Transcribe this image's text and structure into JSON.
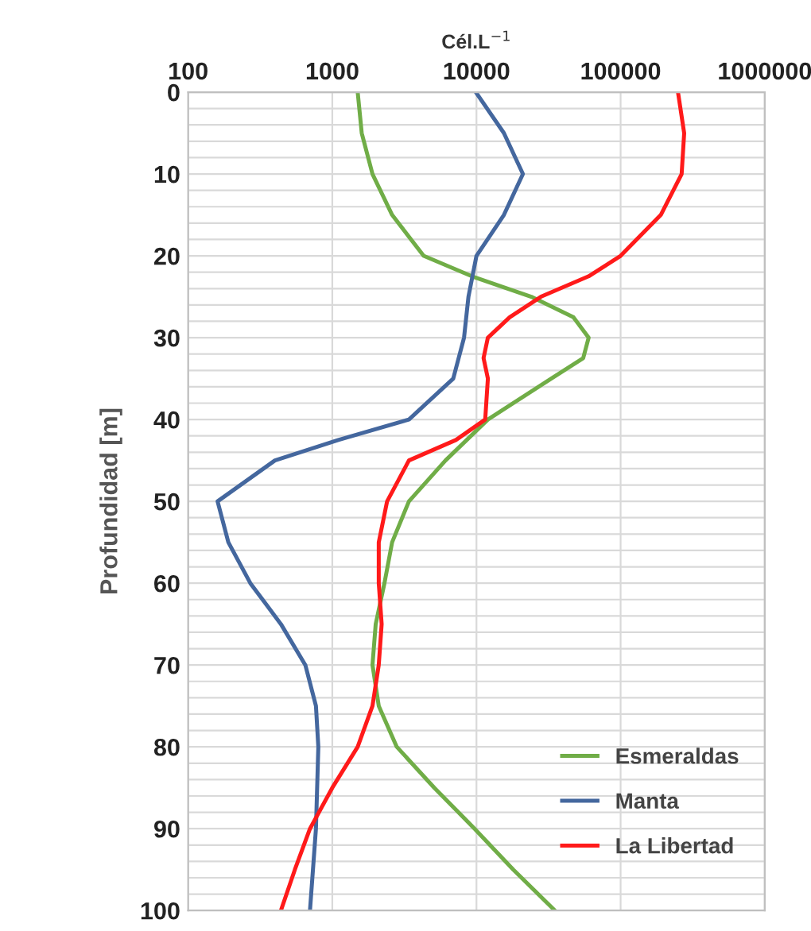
{
  "chart_data": {
    "type": "line",
    "xlabel": "Cél.L$^{−1}$",
    "ylabel": "Profundidad [m]",
    "log": "x",
    "xlim": [
      100,
      1000000
    ],
    "xticks": [
      100,
      1000,
      10000,
      100000,
      1000000
    ],
    "ylim": [
      100,
      0
    ],
    "yticks": [
      0,
      {
        "value": 2,
        "label": null
      },
      {
        "value": 4,
        "label": null
      },
      {
        "value": 6,
        "label": null
      },
      {
        "value": 8,
        "label": null
      },
      10,
      {
        "value": 12,
        "label": null
      },
      {
        "value": 14,
        "label": null
      },
      {
        "value": 16,
        "label": null
      },
      {
        "value": 18,
        "label": null
      },
      20,
      {
        "value": 22,
        "label": null
      },
      {
        "value": 24,
        "label": null
      },
      {
        "value": 26,
        "label": null
      },
      {
        "value": 28,
        "label": null
      },
      30,
      {
        "value": 32,
        "label": null
      },
      {
        "value": 34,
        "label": null
      },
      {
        "value": 36,
        "label": null
      },
      {
        "value": 38,
        "label": null
      },
      40,
      {
        "value": 42,
        "label": null
      },
      {
        "value": 44,
        "label": null
      },
      {
        "value": 46,
        "label": null
      },
      {
        "value": 48,
        "label": null
      },
      50,
      {
        "value": 52,
        "label": null
      },
      {
        "value": 54,
        "label": null
      },
      {
        "value": 56,
        "label": null
      },
      {
        "value": 58,
        "label": null
      },
      60,
      {
        "value": 62,
        "label": null
      },
      {
        "value": 64,
        "label": null
      },
      {
        "value": 66,
        "label": null
      },
      {
        "value": 68,
        "label": null
      },
      70,
      {
        "value": 72,
        "label": null
      },
      {
        "value": 74,
        "label": null
      },
      {
        "value": 76,
        "label": null
      },
      {
        "value": 78,
        "label": null
      },
      80,
      {
        "value": 82,
        "label": null
      },
      {
        "value": 84,
        "label": null
      },
      {
        "value": 86,
        "label": null
      },
      {
        "value": 88,
        "label": null
      },
      90,
      {
        "value": 92,
        "label": null
      },
      {
        "value": 94,
        "label": null
      },
      {
        "value": 96,
        "label": null
      },
      {
        "value": 98,
        "label": null
      },
      100
    ],
    "grid": true,
    "legend": "bottom right",
    "marker": "none",
    "line_style": "solid",
    "series": [
      {
        "name": "Esmeraldas",
        "color": "#70ad47",
        "x": [
          1500,
          1600,
          1900,
          2600,
          4300,
          9300,
          24000,
          47000,
          60000,
          55000,
          33000,
          12000,
          6100,
          3400,
          2600,
          2300,
          2000,
          1900,
          2100,
          2800,
          5100,
          9700,
          18000,
          35000
        ],
        "values": [
          0,
          5,
          10,
          15,
          20,
          22.5,
          25,
          27.5,
          30,
          32.5,
          35,
          40,
          45,
          50,
          55,
          60,
          65,
          70,
          75,
          80,
          85,
          90,
          95,
          100
        ]
      },
      {
        "name": "Manta",
        "color": "#44679e",
        "x": [
          9900,
          15500,
          21000,
          15500,
          10000,
          8800,
          8200,
          6900,
          3400,
          1100,
          400,
          160,
          190,
          270,
          440,
          650,
          770,
          800,
          770,
          700
        ],
        "values": [
          0,
          5,
          10,
          15,
          20,
          25,
          30,
          35,
          40,
          42.5,
          45,
          50,
          55,
          60,
          65,
          70,
          75,
          80,
          90,
          100
        ]
      },
      {
        "name": "La Libertad",
        "color": "#ff1a1a",
        "x": [
          250000,
          276000,
          265000,
          190000,
          100000,
          60000,
          28000,
          17000,
          12000,
          11200,
          12000,
          11500,
          7200,
          3400,
          2400,
          2100,
          2100,
          2200,
          2100,
          1900,
          1500,
          1000,
          700,
          550,
          440
        ],
        "values": [
          0,
          5,
          10,
          15,
          20,
          22.5,
          25,
          27.5,
          30,
          32.5,
          35,
          40,
          42.5,
          45,
          50,
          55,
          60,
          65,
          70,
          75,
          80,
          85,
          90,
          95,
          100
        ]
      }
    ]
  }
}
